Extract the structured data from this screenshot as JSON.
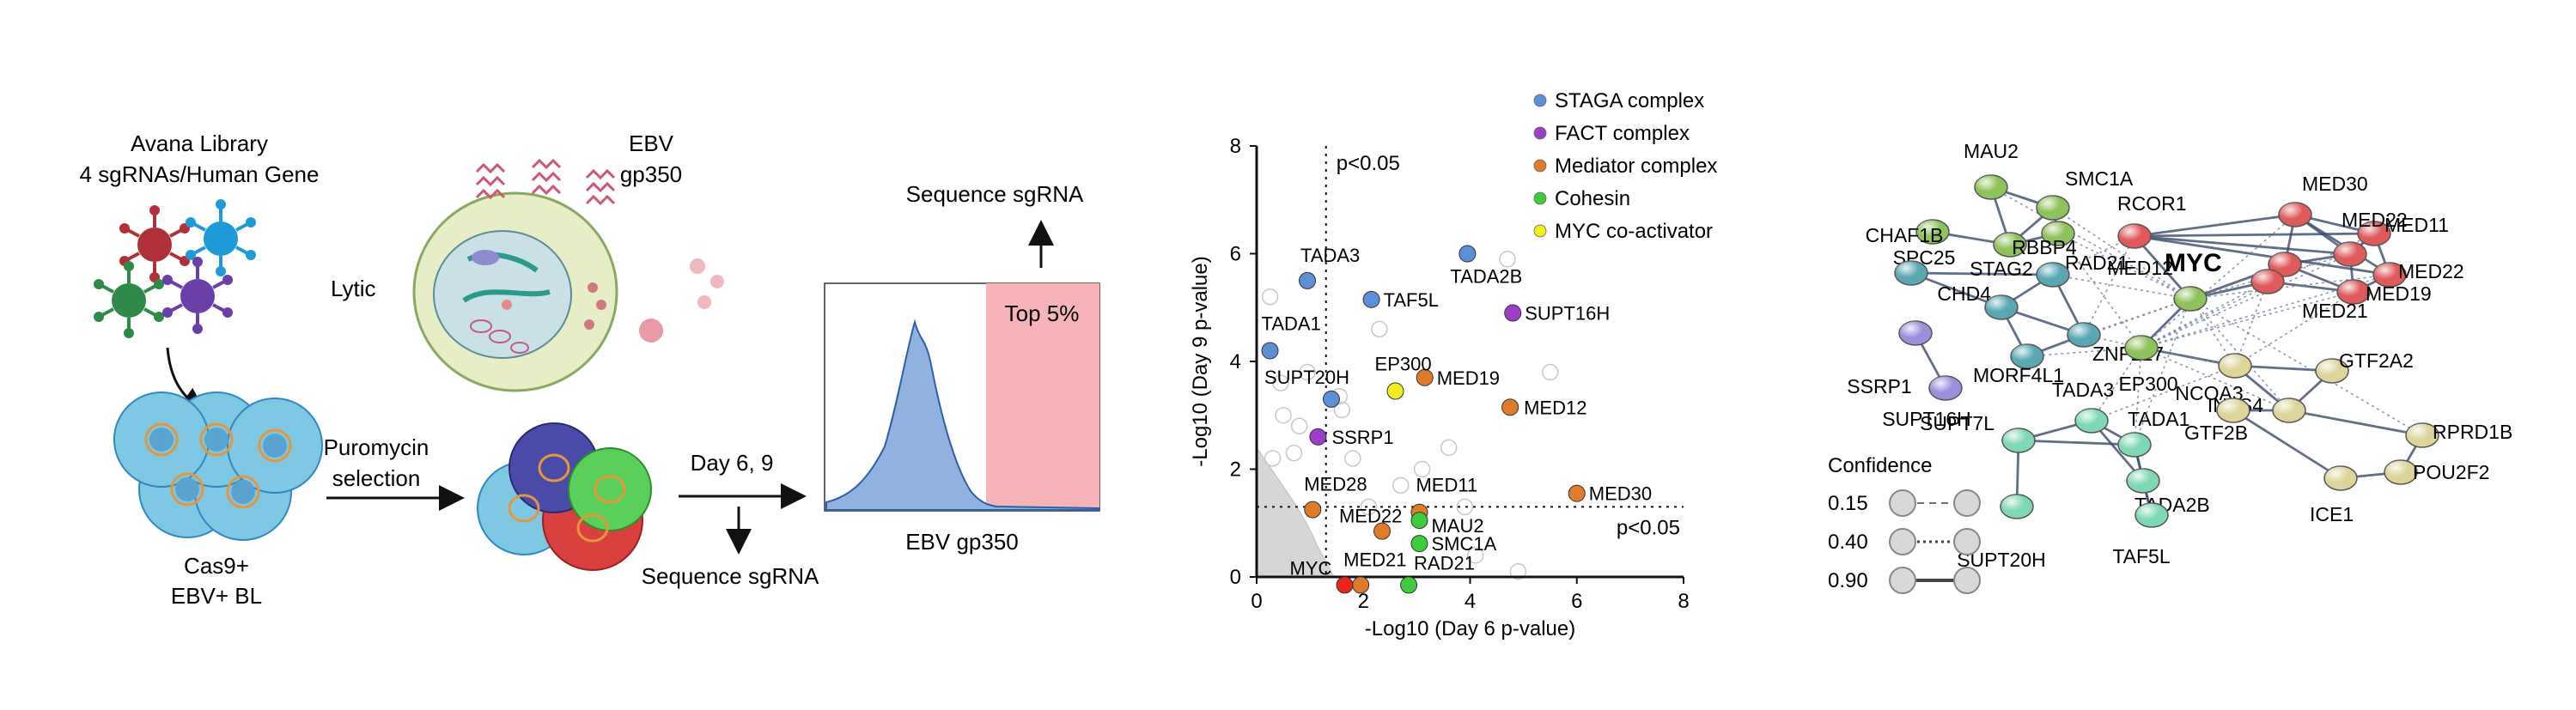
{
  "panel_a": {
    "library_title": "Avana Library",
    "library_subtitle": "4 sgRNAs/Human Gene",
    "ebv_label": "EBV",
    "gp350_label": "gp350",
    "lytic_label": "Lytic",
    "puromycin_label": "Puromycin",
    "selection_label": "selection",
    "day_label": "Day 6, 9",
    "cas9_label": "Cas9+",
    "ebv_bl_label": "EBV+ BL",
    "sequence_bottom": "Sequence sgRNA",
    "sequence_top": "Sequence sgRNA",
    "top5_label": "Top 5%",
    "histogram_xlabel": "EBV gp350",
    "colors": {
      "histogram": "#8fb3de",
      "histogram_line": "#2f5fa8",
      "gate": "#f7b4b8",
      "cell_blue": "#7ec8e3",
      "cell_core": "#e8963a"
    }
  },
  "chart_data": {
    "type": "scatter",
    "xlabel": "-Log10 (Day 6 p-value)",
    "ylabel": "-Log10 (Day 9 p-value)",
    "xlim": [
      0,
      8
    ],
    "ylim": [
      0,
      8
    ],
    "xticks": [
      "0",
      "2",
      "4",
      "6",
      "8"
    ],
    "yticks": [
      "0",
      "2",
      "4",
      "6",
      "8"
    ],
    "threshold_label_top": "p<0.05",
    "threshold_label_right": "p<0.05",
    "threshold_x": 1.3,
    "threshold_y": 1.3,
    "legend": [
      {
        "name": "STAGA complex",
        "color": "#5b8fd6"
      },
      {
        "name": "FACT complex",
        "color": "#9b3fc8"
      },
      {
        "name": "Mediator complex",
        "color": "#e07b2a"
      },
      {
        "name": "Cohesin",
        "color": "#3ccc3c"
      },
      {
        "name": "MYC co-activator",
        "color": "#f2ee1e"
      }
    ],
    "points": [
      {
        "label": "TADA3",
        "x": 0.95,
        "y": 5.5,
        "group": 0
      },
      {
        "label": "TADA1",
        "x": 0.25,
        "y": 4.2,
        "group": 0
      },
      {
        "label": "TAF5L",
        "x": 2.15,
        "y": 5.15,
        "group": 0
      },
      {
        "label": "TADA2B",
        "x": 3.95,
        "y": 6.0,
        "group": 0
      },
      {
        "label": "SUPT20H",
        "x": 1.4,
        "y": 3.3,
        "group": 0
      },
      {
        "label": "SUPT16H",
        "x": 4.8,
        "y": 4.9,
        "group": 1
      },
      {
        "label": "SSRP1",
        "x": 1.15,
        "y": 2.6,
        "group": 1
      },
      {
        "label": "MED19",
        "x": 3.15,
        "y": 3.7,
        "group": 2
      },
      {
        "label": "MED12",
        "x": 4.75,
        "y": 3.15,
        "group": 2
      },
      {
        "label": "MED30",
        "x": 6.0,
        "y": 1.55,
        "group": 2
      },
      {
        "label": "MED28",
        "x": 1.05,
        "y": 1.25,
        "group": 2
      },
      {
        "label": "MED11",
        "x": 3.05,
        "y": 1.2,
        "group": 2
      },
      {
        "label": "MED22",
        "x": 2.35,
        "y": 0.85,
        "group": 2
      },
      {
        "label": "MED21",
        "x": 1.95,
        "y": -0.15,
        "group": 2
      },
      {
        "label": "MAU2",
        "x": 3.05,
        "y": 1.05,
        "group": 3
      },
      {
        "label": "SMC1A",
        "x": 3.05,
        "y": 0.62,
        "group": 3
      },
      {
        "label": "RAD21",
        "x": 2.85,
        "y": -0.15,
        "group": 3
      },
      {
        "label": "EP300",
        "x": 2.6,
        "y": 3.45,
        "group": 4
      },
      {
        "label": "MYC",
        "x": 1.65,
        "y": -0.15,
        "group": 5
      }
    ],
    "myc_color": "#e8261c",
    "grid": false
  },
  "network": {
    "title": "",
    "confidence_title": "Confidence",
    "confidence_levels": [
      "0.15",
      "0.40",
      "0.90"
    ],
    "nodes": [
      {
        "label": "MAU2",
        "color": "#8ec25a"
      },
      {
        "label": "SMC1A",
        "color": "#8ec25a"
      },
      {
        "label": "SPC25",
        "color": "#8ec25a"
      },
      {
        "label": "STAG2",
        "color": "#8ec25a"
      },
      {
        "label": "RAD21",
        "color": "#8ec25a"
      },
      {
        "label": "RCOR1",
        "color": "#e05a5a"
      },
      {
        "label": "MED30",
        "color": "#e05a5a"
      },
      {
        "label": "MED11",
        "color": "#e05a5a"
      },
      {
        "label": "MED22",
        "color": "#e05a5a"
      },
      {
        "label": "MED22",
        "color": "#e05a5a"
      },
      {
        "label": "MED12",
        "color": "#e05a5a"
      },
      {
        "label": "MED19",
        "color": "#e05a5a"
      },
      {
        "label": "MED21",
        "color": "#e05a5a"
      },
      {
        "label": "MYC",
        "color": "#8ec25a"
      },
      {
        "label": "CHAF1B",
        "color": "#5aa7b4"
      },
      {
        "label": "RBBP4",
        "color": "#5aa7b4"
      },
      {
        "label": "CHD4",
        "color": "#5aa7b4"
      },
      {
        "label": "ZNF217",
        "color": "#5aa7b4"
      },
      {
        "label": "MORF4L1",
        "color": "#5aa7b4"
      },
      {
        "label": "SSRP1",
        "color": "#9a8fdc"
      },
      {
        "label": "SUPT16H",
        "color": "#9a8fdc"
      },
      {
        "label": "EP300",
        "color": "#8ec25a"
      },
      {
        "label": "NCOA3",
        "color": "#ddd49a"
      },
      {
        "label": "GTF2A2",
        "color": "#ddd49a"
      },
      {
        "label": "INTS4",
        "color": "#ddd49a"
      },
      {
        "label": "GTF2B",
        "color": "#ddd49a"
      },
      {
        "label": "RPRD1B",
        "color": "#ddd49a"
      },
      {
        "label": "POU2F2",
        "color": "#ddd49a"
      },
      {
        "label": "ICE1",
        "color": "#ddd49a"
      },
      {
        "label": "SUPT7L",
        "color": "#7ed8b4"
      },
      {
        "label": "TADA3",
        "color": "#7ed8b4"
      },
      {
        "label": "TADA1",
        "color": "#7ed8b4"
      },
      {
        "label": "TADA2B",
        "color": "#7ed8b4"
      },
      {
        "label": "SUPT20H",
        "color": "#7ed8b4"
      },
      {
        "label": "TAF5L",
        "color": "#7ed8b4"
      }
    ]
  }
}
